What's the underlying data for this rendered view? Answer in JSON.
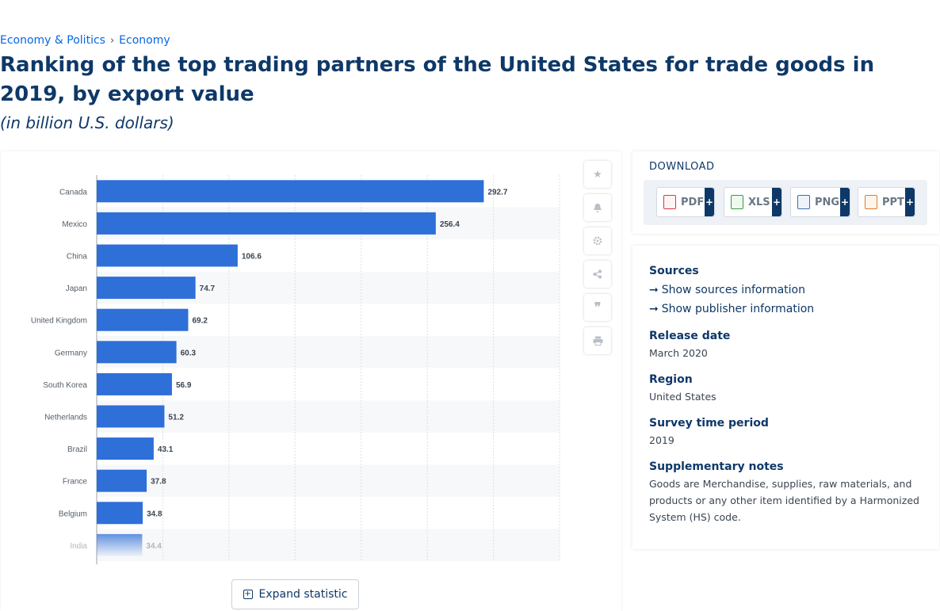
{
  "breadcrumb": {
    "items": [
      "Economy & Politics",
      "Economy"
    ],
    "separator": "›"
  },
  "title": "Ranking of the top trading partners of the United States for trade goods in 2019, by export value",
  "subtitle": "(in billion U.S. dollars)",
  "chart_data": {
    "type": "bar",
    "orientation": "horizontal",
    "categories": [
      "Canada",
      "Mexico",
      "China",
      "Japan",
      "United Kingdom",
      "Germany",
      "South Korea",
      "Netherlands",
      "Brazil",
      "France",
      "Belgium",
      "India"
    ],
    "values": [
      292.7,
      256.4,
      106.6,
      74.7,
      69.2,
      60.3,
      56.9,
      51.2,
      43.1,
      37.8,
      34.8,
      34.4
    ],
    "xlim": [
      0,
      350
    ],
    "grid": true,
    "bar_color": "#2e6fd8"
  },
  "tools": [
    "star-icon",
    "bell-icon",
    "gear-icon",
    "share-icon",
    "quote-icon",
    "print-icon"
  ],
  "expand_label": "Expand statistic",
  "download": {
    "title": "DOWNLOAD",
    "buttons": [
      {
        "label": "PDF",
        "color": "#d9363e"
      },
      {
        "label": "XLS",
        "color": "#3c9a3c"
      },
      {
        "label": "PNG",
        "color": "#3b6fb6"
      },
      {
        "label": "PPT",
        "color": "#e07b2a"
      }
    ],
    "plus": "+"
  },
  "meta": {
    "sources_label": "Sources",
    "show_sources": "Show sources information",
    "show_publisher": "Show publisher information",
    "release_label": "Release date",
    "release_value": "March 2020",
    "region_label": "Region",
    "region_value": "United States",
    "survey_label": "Survey time period",
    "survey_value": "2019",
    "notes_label": "Supplementary notes",
    "notes_value": "Goods are Merchandise, supplies, raw materials, and products or any other item identified by a Harmonized System (HS) code."
  }
}
